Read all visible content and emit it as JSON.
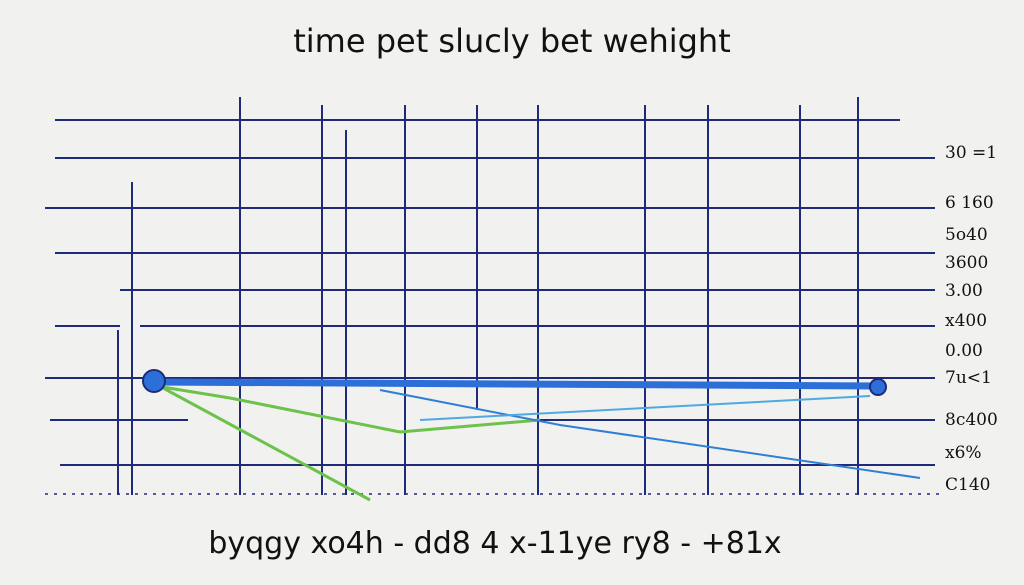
{
  "header": {
    "title": "time pet slucly bet wehight"
  },
  "axis_labels": [
    "30 =1",
    "6 160",
    "5o40",
    "3600",
    "3.00",
    "x400",
    "0.00",
    "7u<1",
    "8c400",
    "x6%",
    "C140"
  ],
  "caption": "byqgy xo4h - dd8 4 x-11ye ry8 - +81x"
}
